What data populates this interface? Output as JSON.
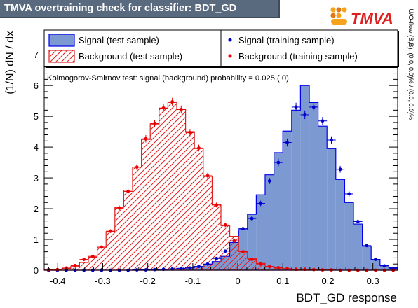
{
  "header": {
    "title": "TMVA overtraining check for classifier: BDT_GD"
  },
  "logo": {
    "text": "TMVA",
    "dot_colors": [
      "#f6a21b",
      "#e0781a",
      "#f6a21b",
      "#e0781a",
      "#f6a21b",
      "#ffffff"
    ]
  },
  "chart_data": {
    "type": "bar",
    "xlabel": "BDT_GD response",
    "ylabel": "(1/N) dN / dx",
    "xlim": [
      -0.43,
      0.355
    ],
    "ylim": [
      0,
      7.8
    ],
    "xticks": [
      -0.4,
      -0.3,
      -0.2,
      -0.1,
      0,
      0.1,
      0.2,
      0.3
    ],
    "xtick_labels": [
      "-0.4",
      "-0.3",
      "-0.2",
      "-0.1",
      "0",
      "0.1",
      "0.2",
      "0.3"
    ],
    "yticks": [
      0,
      1,
      2,
      3,
      4,
      5,
      6,
      7
    ],
    "ytick_labels": [
      "0",
      "1",
      "2",
      "3",
      "4",
      "5",
      "6",
      "7"
    ],
    "bin_edges": [
      -0.43,
      -0.4104,
      -0.3908,
      -0.3711,
      -0.3515,
      -0.3319,
      -0.3123,
      -0.2926,
      -0.273,
      -0.2534,
      -0.2338,
      -0.2141,
      -0.1945,
      -0.1749,
      -0.1553,
      -0.1356,
      -0.116,
      -0.0964,
      -0.0768,
      -0.0571,
      -0.0375,
      -0.0179,
      0.0018,
      0.0214,
      0.041,
      0.0606,
      0.0803,
      0.0999,
      0.1195,
      0.1391,
      0.1588,
      0.1784,
      0.198,
      0.2176,
      0.2373,
      0.2569,
      0.2765,
      0.2961,
      0.3158,
      0.3354,
      0.355
    ],
    "bin_centers": [
      -0.4202,
      -0.4006,
      -0.381,
      -0.3613,
      -0.3417,
      -0.3221,
      -0.3025,
      -0.2828,
      -0.2632,
      -0.2436,
      -0.224,
      -0.2043,
      -0.1847,
      -0.1651,
      -0.1455,
      -0.1258,
      -0.1062,
      -0.0866,
      -0.067,
      -0.0473,
      -0.0277,
      -0.0081,
      0.0116,
      0.0312,
      0.0508,
      0.0704,
      0.0901,
      0.1097,
      0.1293,
      0.1489,
      0.1686,
      0.1882,
      0.2078,
      0.2274,
      0.2471,
      0.2667,
      0.2863,
      0.3059,
      0.3256,
      0.3452
    ],
    "series": [
      {
        "name": "Signal (test sample)",
        "style": "filled-histogram",
        "color": "#7d99d1",
        "line_color": "#0000ee",
        "values": [
          0,
          0,
          0,
          0,
          0,
          0,
          0,
          0,
          0,
          0,
          0.01,
          0.02,
          0.02,
          0.03,
          0.04,
          0.06,
          0.08,
          0.12,
          0.18,
          0.28,
          0.45,
          0.9,
          1.32,
          1.82,
          2.45,
          3.1,
          3.82,
          4.52,
          5.2,
          6.0,
          5.45,
          4.68,
          3.95,
          2.95,
          2.2,
          1.5,
          0.78,
          0.35,
          0.15,
          0.08
        ]
      },
      {
        "name": "Background (test sample)",
        "style": "hatched-histogram",
        "color": "#e02020",
        "values": [
          0.0,
          0.02,
          0.05,
          0.12,
          0.25,
          0.42,
          0.72,
          1.25,
          2.05,
          2.6,
          3.35,
          4.25,
          4.75,
          5.25,
          5.45,
          5.22,
          4.5,
          3.95,
          3.05,
          2.12,
          1.45,
          1.1,
          0.62,
          0.38,
          0.22,
          0.12,
          0.07,
          0.04,
          0.02,
          0.01,
          0.01,
          0,
          0,
          0,
          0,
          0,
          0,
          0,
          0,
          0
        ]
      },
      {
        "name": "Signal (training sample)",
        "style": "points",
        "color": "#0000cc",
        "values": [
          0.0,
          0.0,
          0.0,
          0.0,
          0.0,
          0.0,
          0.0,
          0.0,
          0.0,
          0.0,
          0.01,
          0.01,
          0.02,
          0.03,
          0.04,
          0.05,
          0.07,
          0.12,
          0.2,
          0.38,
          0.62,
          0.95,
          1.35,
          1.68,
          2.17,
          2.9,
          3.5,
          4.15,
          5.3,
          5.05,
          5.3,
          4.85,
          4.23,
          3.28,
          2.48,
          1.58,
          0.8,
          0.35,
          0.14,
          0.06
        ],
        "errors": [
          0,
          0,
          0,
          0,
          0,
          0,
          0,
          0,
          0,
          0,
          0,
          0,
          0.01,
          0.01,
          0.01,
          0.01,
          0.02,
          0.02,
          0.03,
          0.04,
          0.05,
          0.06,
          0.07,
          0.08,
          0.09,
          0.1,
          0.12,
          0.13,
          0.14,
          0.14,
          0.14,
          0.13,
          0.12,
          0.11,
          0.09,
          0.07,
          0.05,
          0.03,
          0.02,
          0.01
        ]
      },
      {
        "name": "Background (training sample)",
        "style": "points",
        "color": "#ee0000",
        "values": [
          0.02,
          0.02,
          0.07,
          0.15,
          0.35,
          0.45,
          0.75,
          1.27,
          2.02,
          2.56,
          3.35,
          4.27,
          4.77,
          5.27,
          5.47,
          5.22,
          4.47,
          3.97,
          3.07,
          2.12,
          1.47,
          0.95,
          0.6,
          0.35,
          0.2,
          0.12,
          0.08,
          0.05,
          0.03,
          0.03,
          0.02,
          0.01,
          0.01,
          0.0,
          0.0,
          0.0,
          0.0,
          0.0,
          0.0,
          0.0
        ],
        "errors": [
          0,
          0.01,
          0.01,
          0.02,
          0.03,
          0.04,
          0.05,
          0.06,
          0.08,
          0.09,
          0.1,
          0.12,
          0.12,
          0.13,
          0.13,
          0.13,
          0.12,
          0.11,
          0.1,
          0.08,
          0.07,
          0.05,
          0.04,
          0.03,
          0.02,
          0.02,
          0.01,
          0.01,
          0.01,
          0.01,
          0,
          0,
          0,
          0,
          0,
          0,
          0,
          0,
          0,
          0
        ]
      }
    ],
    "legend_position": "top",
    "annotation": "Kolmogorov-Smirnov test: signal (background) probability = 0.025 (    0)",
    "side_note": "U/O-flow (S,B): (0.0, 0.0)% / (0.0, 0.0)%"
  }
}
